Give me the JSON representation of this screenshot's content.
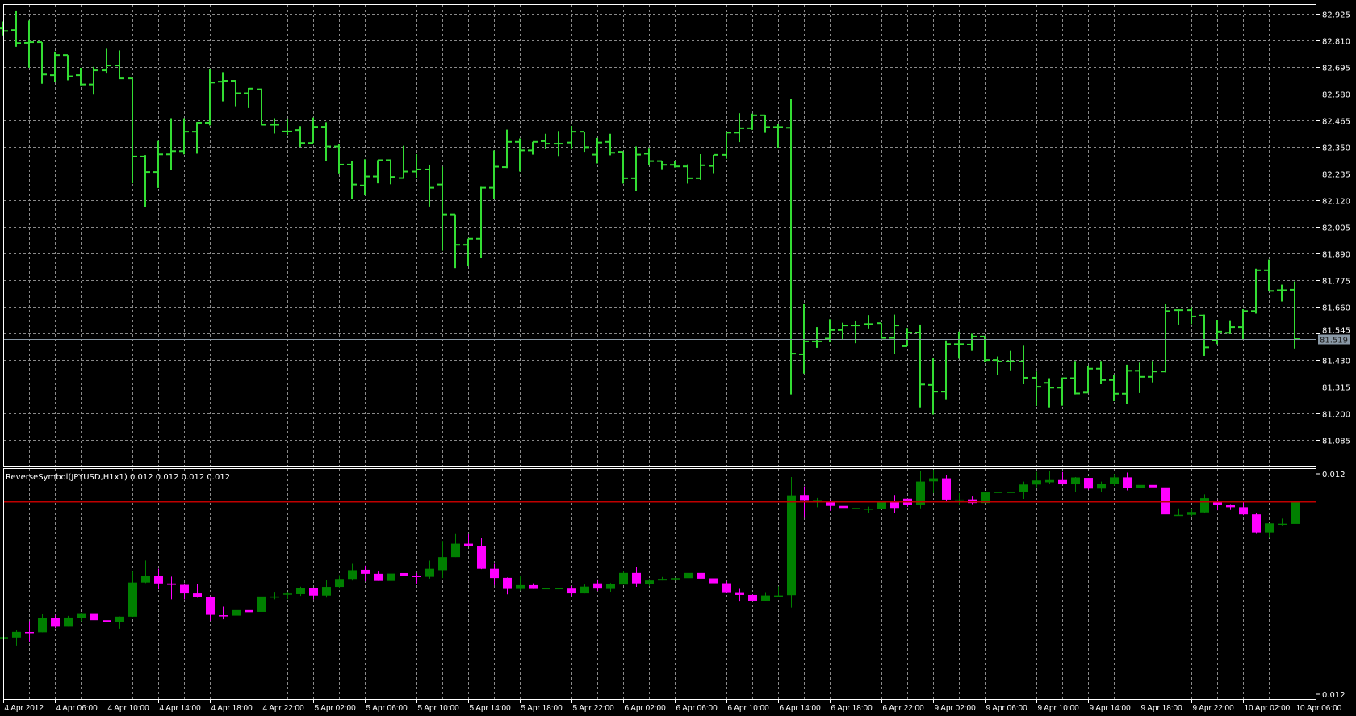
{
  "colors": {
    "background": "#000000",
    "frame": "#ffffff",
    "grid": "#8a8a8a",
    "price_bars": "#33dd33",
    "bull_candle": "#008000",
    "bear_candle": "#ff00ff",
    "indicator_level_line": "#c00000",
    "current_price_line": "#8a99a6",
    "current_price_box": "#8a99a6"
  },
  "main_chart": {
    "current_price": "81.519",
    "price_scale_labels": [
      "82.925",
      "82.810",
      "82.695",
      "82.580",
      "82.465",
      "82.350",
      "82.235",
      "82.120",
      "82.005",
      "81.890",
      "81.775",
      "81.660",
      "81.545",
      "81.430",
      "81.315",
      "81.200",
      "81.085"
    ]
  },
  "indicator": {
    "legend": "ReverseSymbol(JPYUSD,H1x1) 0.012 0.012 0.012 0.012",
    "scale_top": "0.012",
    "scale_bottom": "0.012",
    "level_value": 0.0122671
  },
  "time_axis": {
    "labels": [
      "4 Apr 2012",
      "4 Apr 06:00",
      "4 Apr 10:00",
      "4 Apr 14:00",
      "4 Apr 18:00",
      "4 Apr 22:00",
      "5 Apr 02:00",
      "5 Apr 06:00",
      "5 Apr 10:00",
      "5 Apr 14:00",
      "5 Apr 18:00",
      "5 Apr 22:00",
      "6 Apr 02:00",
      "6 Apr 06:00",
      "6 Apr 10:00",
      "6 Apr 14:00",
      "6 Apr 18:00",
      "6 Apr 22:00",
      "9 Apr 02:00",
      "9 Apr 06:00",
      "9 Apr 10:00",
      "9 Apr 14:00",
      "9 Apr 18:00",
      "9 Apr 22:00",
      "10 Apr 02:00",
      "10 Apr 06:00"
    ]
  },
  "chart_data": {
    "type": "ohlc",
    "timeframe": "H1",
    "fields": [
      "open",
      "high",
      "low",
      "close"
    ],
    "bars": [
      [
        82.86,
        82.89,
        82.83,
        82.849
      ],
      [
        82.853,
        82.934,
        82.781,
        82.797
      ],
      [
        82.798,
        82.894,
        82.69,
        82.801
      ],
      [
        82.801,
        82.801,
        82.621,
        82.661
      ],
      [
        82.658,
        82.76,
        82.63,
        82.745
      ],
      [
        82.745,
        82.745,
        82.636,
        82.653
      ],
      [
        82.658,
        82.69,
        82.614,
        82.618
      ],
      [
        82.618,
        82.694,
        82.574,
        82.679
      ],
      [
        82.679,
        82.772,
        82.665,
        82.7
      ],
      [
        82.7,
        82.765,
        82.642,
        82.644
      ],
      [
        82.644,
        82.646,
        82.191,
        82.307
      ],
      [
        82.307,
        82.313,
        82.09,
        82.24
      ],
      [
        82.24,
        82.374,
        82.171,
        82.316
      ],
      [
        82.316,
        82.472,
        82.249,
        82.33
      ],
      [
        82.33,
        82.472,
        82.316,
        82.414
      ],
      [
        82.414,
        82.456,
        82.319,
        82.453
      ],
      [
        82.453,
        82.685,
        82.441,
        82.626
      ],
      [
        82.63,
        82.671,
        82.545,
        82.634
      ],
      [
        82.634,
        82.634,
        82.524,
        82.58
      ],
      [
        82.58,
        82.603,
        82.516,
        82.6
      ],
      [
        82.597,
        82.597,
        82.441,
        82.444
      ],
      [
        82.444,
        82.472,
        82.406,
        82.444
      ],
      [
        82.415,
        82.47,
        82.4,
        82.415
      ],
      [
        82.421,
        82.438,
        82.348,
        82.365
      ],
      [
        82.365,
        82.475,
        82.365,
        82.435
      ],
      [
        82.435,
        82.455,
        82.286,
        82.35
      ],
      [
        82.35,
        82.362,
        82.234,
        82.272
      ],
      [
        82.272,
        82.288,
        82.123,
        82.186
      ],
      [
        82.182,
        82.295,
        82.141,
        82.221
      ],
      [
        82.221,
        82.291,
        82.191,
        82.291
      ],
      [
        82.291,
        82.291,
        82.187,
        82.219
      ],
      [
        82.214,
        82.353,
        82.214,
        82.242
      ],
      [
        82.242,
        82.317,
        82.213,
        82.251
      ],
      [
        82.251,
        82.269,
        82.091,
        82.172
      ],
      [
        82.186,
        82.263,
        81.9,
        82.057
      ],
      [
        82.057,
        82.057,
        81.825,
        81.926
      ],
      [
        81.926,
        81.952,
        81.835,
        81.952
      ],
      [
        81.952,
        82.176,
        81.87,
        82.172
      ],
      [
        82.172,
        82.333,
        82.123,
        82.263
      ],
      [
        82.261,
        82.423,
        82.257,
        82.37
      ],
      [
        82.37,
        82.385,
        82.242,
        82.333
      ],
      [
        82.333,
        82.37,
        82.315,
        82.37
      ],
      [
        82.373,
        82.405,
        82.338,
        82.362
      ],
      [
        82.362,
        82.417,
        82.309,
        82.362
      ],
      [
        82.367,
        82.439,
        82.342,
        82.414
      ],
      [
        82.414,
        82.414,
        82.327,
        82.347
      ],
      [
        82.315,
        82.387,
        82.277,
        82.367
      ],
      [
        82.37,
        82.405,
        82.312,
        82.323
      ],
      [
        82.327,
        82.327,
        82.19,
        82.213
      ],
      [
        82.213,
        82.35,
        82.158,
        82.315
      ],
      [
        82.319,
        82.344,
        82.271,
        82.287
      ],
      [
        82.287,
        82.287,
        82.252,
        82.271
      ],
      [
        82.271,
        82.287,
        82.259,
        82.264
      ],
      [
        82.264,
        82.273,
        82.19,
        82.213
      ],
      [
        82.213,
        82.317,
        82.206,
        82.269
      ],
      [
        82.266,
        82.314,
        82.235,
        82.314
      ],
      [
        82.314,
        82.413,
        82.297,
        82.41
      ],
      [
        82.41,
        82.494,
        82.369,
        82.429
      ],
      [
        82.429,
        82.492,
        82.422,
        82.485
      ],
      [
        82.485,
        82.485,
        82.409,
        82.434
      ],
      [
        82.434,
        82.446,
        82.345,
        82.434
      ],
      [
        82.431,
        82.554,
        81.28,
        81.456
      ],
      [
        81.453,
        81.672,
        81.37,
        81.509
      ],
      [
        81.509,
        81.571,
        81.481,
        81.509
      ],
      [
        81.521,
        81.605,
        81.505,
        81.558
      ],
      [
        81.558,
        81.59,
        81.518,
        81.578
      ],
      [
        81.578,
        81.596,
        81.501,
        81.578
      ],
      [
        81.584,
        81.623,
        81.565,
        81.584
      ],
      [
        81.588,
        81.588,
        81.524,
        81.524
      ],
      [
        81.524,
        81.625,
        81.453,
        81.578
      ],
      [
        81.488,
        81.567,
        81.488,
        81.547
      ],
      [
        81.547,
        81.582,
        81.224,
        81.323
      ],
      [
        81.321,
        81.435,
        81.193,
        81.292
      ],
      [
        81.292,
        81.513,
        81.259,
        81.497
      ],
      [
        81.497,
        81.551,
        81.434,
        81.497
      ],
      [
        81.495,
        81.542,
        81.468,
        81.53
      ],
      [
        81.53,
        81.53,
        81.42,
        81.428
      ],
      [
        81.428,
        81.444,
        81.364,
        81.422
      ],
      [
        81.422,
        81.468,
        81.384,
        81.422
      ],
      [
        81.422,
        81.49,
        81.324,
        81.352
      ],
      [
        81.352,
        81.379,
        81.23,
        81.313
      ],
      [
        81.33,
        81.35,
        81.224,
        81.309
      ],
      [
        81.309,
        81.353,
        81.231,
        81.35
      ],
      [
        81.35,
        81.424,
        81.28,
        81.284
      ],
      [
        81.288,
        81.402,
        81.288,
        81.391
      ],
      [
        81.391,
        81.424,
        81.324,
        81.342
      ],
      [
        81.342,
        81.364,
        81.251,
        81.283
      ],
      [
        81.283,
        81.408,
        81.237,
        81.382
      ],
      [
        81.382,
        81.417,
        81.286,
        81.356
      ],
      [
        81.356,
        81.424,
        81.332,
        81.379
      ],
      [
        81.379,
        81.672,
        81.375,
        81.64
      ],
      [
        81.644,
        81.648,
        81.582,
        81.644
      ],
      [
        81.644,
        81.658,
        81.584,
        81.617
      ],
      [
        81.621,
        81.625,
        81.446,
        81.483
      ],
      [
        81.515,
        81.6,
        81.497,
        81.551
      ],
      [
        81.546,
        81.597,
        81.541,
        81.571
      ],
      [
        81.571,
        81.648,
        81.518,
        81.64
      ],
      [
        81.64,
        81.823,
        81.629,
        81.816
      ],
      [
        81.816,
        81.862,
        81.727,
        81.727
      ],
      [
        81.73,
        81.754,
        81.681,
        81.73
      ],
      [
        81.732,
        81.768,
        81.478,
        81.519
      ]
    ],
    "y_range": [
      80.972,
      82.965
    ],
    "grid": true
  }
}
